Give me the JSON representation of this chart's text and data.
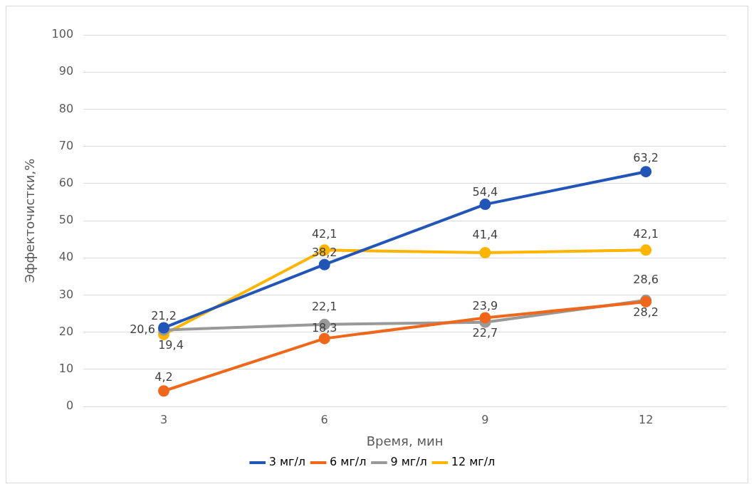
{
  "chart_data": {
    "type": "line",
    "xlabel": "Время, мин",
    "ylabel": "Эффекточистки,%",
    "categories": [
      "3",
      "6",
      "9",
      "12"
    ],
    "series": [
      {
        "name": "3 мг/л",
        "color": "#2255b8",
        "values": [
          21.2,
          38.2,
          54.4,
          63.2
        ],
        "value_labels": [
          "21,2",
          "38,2",
          "54,4",
          "63,2"
        ]
      },
      {
        "name": "6 мг/л",
        "color": "#f0661a",
        "values": [
          4.2,
          18.3,
          23.9,
          28.2
        ],
        "value_labels": [
          "4,2",
          "18,3",
          "23,9",
          "28,2"
        ]
      },
      {
        "name": "9 мг/л",
        "color": "#999999",
        "values": [
          20.6,
          22.1,
          22.7,
          28.6
        ],
        "value_labels": [
          "20,6",
          "22,1",
          "22,7",
          "28,6"
        ]
      },
      {
        "name": "12 мг/л",
        "color": "#ffb400",
        "values": [
          19.4,
          42.1,
          41.4,
          42.1
        ],
        "value_labels": [
          "19,4",
          "42,1",
          "41,4",
          "42,1"
        ]
      }
    ],
    "ylim": [
      0,
      100
    ],
    "yticks": [
      0,
      10,
      20,
      30,
      40,
      50,
      60,
      70,
      80,
      90,
      100
    ],
    "grid": "y",
    "legend": "bottom",
    "marker": "circle",
    "line_style": "solid"
  }
}
